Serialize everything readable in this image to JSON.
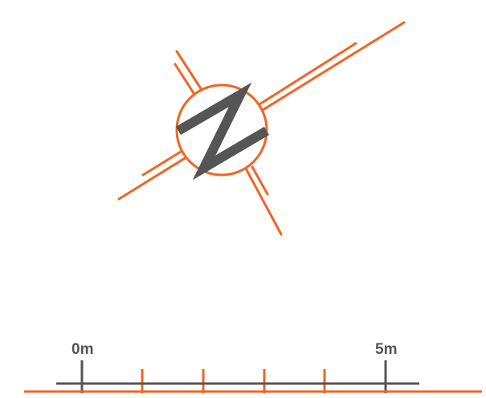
{
  "north_arrow": {
    "letter": "N",
    "icon": "north-arrow-icon"
  },
  "scale_bar": {
    "start_label": "0m",
    "end_label": "5m"
  },
  "colors": {
    "accent": "#f26522",
    "dark": "#555555"
  }
}
